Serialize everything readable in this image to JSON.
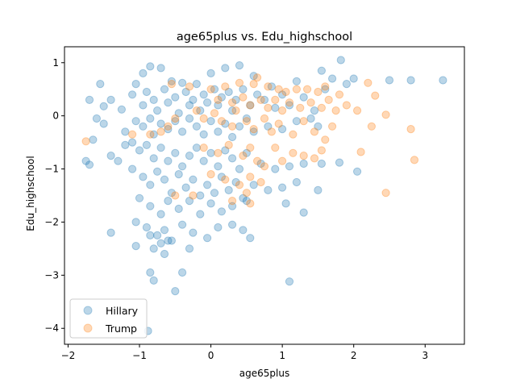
{
  "chart_data": {
    "type": "scatter",
    "title": "age65plus vs. Edu_highschool",
    "xlabel": "age65plus",
    "ylabel": "Edu_highschool",
    "xlim": [
      -2.05,
      3.55
    ],
    "ylim": [
      -4.3,
      1.3
    ],
    "xticks": [
      -2,
      -1,
      0,
      1,
      2,
      3
    ],
    "yticks": [
      1,
      0,
      -1,
      -2,
      -3,
      -4
    ],
    "grid": false,
    "legend_position": "bottom-left",
    "series": [
      {
        "name": "Hillary",
        "color": "#1f77b4",
        "points": [
          [
            -0.95,
            0.8
          ],
          [
            -0.85,
            0.93
          ],
          [
            -0.7,
            0.9
          ],
          [
            -0.55,
            0.65
          ],
          [
            -0.4,
            0.62
          ],
          [
            -0.2,
            0.6
          ],
          [
            0.0,
            0.8
          ],
          [
            0.2,
            0.9
          ],
          [
            0.4,
            0.95
          ],
          [
            0.6,
            0.75
          ],
          [
            0.85,
            0.55
          ],
          [
            1.2,
            0.65
          ],
          [
            1.55,
            0.85
          ],
          [
            1.7,
            0.7
          ],
          [
            1.82,
            1.05
          ],
          [
            1.9,
            0.6
          ],
          [
            2.0,
            0.7
          ],
          [
            2.5,
            0.67
          ],
          [
            2.8,
            0.67
          ],
          [
            3.25,
            0.67
          ],
          [
            -1.55,
            0.6
          ],
          [
            -1.7,
            0.3
          ],
          [
            -1.5,
            0.18
          ],
          [
            -1.4,
            0.3
          ],
          [
            -1.25,
            0.12
          ],
          [
            -1.1,
            0.4
          ],
          [
            -1.05,
            0.6
          ],
          [
            -0.95,
            0.2
          ],
          [
            -0.9,
            0.45
          ],
          [
            -0.8,
            0.3
          ],
          [
            -0.75,
            0.1
          ],
          [
            -0.65,
            0.5
          ],
          [
            -0.6,
            0.25
          ],
          [
            -0.5,
            0.35
          ],
          [
            -0.45,
            0.05
          ],
          [
            -0.35,
            0.45
          ],
          [
            -0.3,
            0.2
          ],
          [
            -0.25,
            0.3
          ],
          [
            -0.15,
            0.1
          ],
          [
            -0.1,
            0.4
          ],
          [
            -0.05,
            0.25
          ],
          [
            0.05,
            0.5
          ],
          [
            0.1,
            0.2
          ],
          [
            0.15,
            0.35
          ],
          [
            0.25,
            0.45
          ],
          [
            0.3,
            0.1
          ],
          [
            0.35,
            0.3
          ],
          [
            0.45,
            0.5
          ],
          [
            0.55,
            0.2
          ],
          [
            0.65,
            0.4
          ],
          [
            0.75,
            0.3
          ],
          [
            0.9,
            0.15
          ],
          [
            1.0,
            0.4
          ],
          [
            1.1,
            0.2
          ],
          [
            1.3,
            0.35
          ],
          [
            1.45,
            0.1
          ],
          [
            1.6,
            0.5
          ],
          [
            -1.6,
            -0.05
          ],
          [
            -1.5,
            -0.15
          ],
          [
            -1.2,
            -0.3
          ],
          [
            -1.05,
            -0.1
          ],
          [
            -0.95,
            -0.2
          ],
          [
            -0.85,
            -0.05
          ],
          [
            -0.8,
            -0.35
          ],
          [
            -0.7,
            -0.15
          ],
          [
            -0.6,
            -0.25
          ],
          [
            -0.5,
            -0.1
          ],
          [
            -0.4,
            -0.3
          ],
          [
            -0.3,
            -0.05
          ],
          [
            -0.2,
            -0.2
          ],
          [
            -0.1,
            -0.35
          ],
          [
            0.0,
            -0.1
          ],
          [
            0.1,
            -0.3
          ],
          [
            0.2,
            -0.15
          ],
          [
            0.3,
            -0.4
          ],
          [
            0.4,
            -0.2
          ],
          [
            0.5,
            -0.05
          ],
          [
            0.6,
            -0.3
          ],
          [
            0.8,
            -0.2
          ],
          [
            1.0,
            -0.25
          ],
          [
            1.2,
            -0.1
          ],
          [
            1.4,
            -0.05
          ],
          [
            1.5,
            -0.2
          ],
          [
            -1.65,
            -0.45
          ],
          [
            -1.75,
            -0.85
          ],
          [
            -1.7,
            -0.92
          ],
          [
            -1.4,
            -0.75
          ],
          [
            -1.2,
            -0.55
          ],
          [
            -1.1,
            -0.5
          ],
          [
            -1.0,
            -0.65
          ],
          [
            -0.9,
            -0.55
          ],
          [
            -0.8,
            -0.8
          ],
          [
            -0.7,
            -0.6
          ],
          [
            -0.6,
            -0.85
          ],
          [
            -0.5,
            -0.7
          ],
          [
            -0.4,
            -0.95
          ],
          [
            -0.3,
            -0.75
          ],
          [
            -0.2,
            -0.6
          ],
          [
            -0.1,
            -0.85
          ],
          [
            0.0,
            -0.7
          ],
          [
            0.1,
            -0.95
          ],
          [
            0.2,
            -0.65
          ],
          [
            0.3,
            -0.8
          ],
          [
            0.4,
            -1.0
          ],
          [
            0.5,
            -0.7
          ],
          [
            0.7,
            -0.9
          ],
          [
            0.9,
            -1.0
          ],
          [
            1.1,
            -0.95
          ],
          [
            1.3,
            -0.9
          ],
          [
            1.55,
            -0.9
          ],
          [
            1.8,
            -0.88
          ],
          [
            2.05,
            -1.05
          ],
          [
            -1.3,
            -0.85
          ],
          [
            -1.1,
            -1.0
          ],
          [
            -0.95,
            -1.15
          ],
          [
            -0.85,
            -1.3
          ],
          [
            -0.75,
            -1.05
          ],
          [
            -0.65,
            -1.2
          ],
          [
            -0.55,
            -1.45
          ],
          [
            -0.45,
            -1.1
          ],
          [
            -0.35,
            -1.35
          ],
          [
            -0.25,
            -1.2
          ],
          [
            -0.15,
            -1.5
          ],
          [
            -0.05,
            -1.3
          ],
          [
            0.05,
            -1.45
          ],
          [
            0.15,
            -1.15
          ],
          [
            0.25,
            -1.4
          ],
          [
            0.35,
            -1.25
          ],
          [
            0.45,
            -1.55
          ],
          [
            0.6,
            -1.3
          ],
          [
            0.8,
            -1.4
          ],
          [
            1.0,
            -1.35
          ],
          [
            1.2,
            -1.25
          ],
          [
            1.5,
            -1.4
          ],
          [
            -1.0,
            -1.55
          ],
          [
            -0.85,
            -1.7
          ],
          [
            -0.7,
            -1.85
          ],
          [
            -0.6,
            -1.6
          ],
          [
            -0.45,
            -1.75
          ],
          [
            -0.3,
            -1.6
          ],
          [
            -0.15,
            -1.85
          ],
          [
            0.0,
            -1.65
          ],
          [
            0.15,
            -1.8
          ],
          [
            0.3,
            -1.7
          ],
          [
            0.5,
            -1.6
          ],
          [
            1.05,
            -1.65
          ],
          [
            1.3,
            -1.82
          ],
          [
            -1.05,
            -2.0
          ],
          [
            -0.9,
            -2.1
          ],
          [
            -0.75,
            -2.25
          ],
          [
            -0.65,
            -2.15
          ],
          [
            -0.55,
            -2.35
          ],
          [
            -0.4,
            -2.05
          ],
          [
            -0.25,
            -2.2
          ],
          [
            -0.05,
            -2.3
          ],
          [
            0.1,
            -2.1
          ],
          [
            0.3,
            -2.05
          ],
          [
            0.45,
            -2.15
          ],
          [
            0.55,
            -2.3
          ],
          [
            -1.4,
            -2.2
          ],
          [
            -1.05,
            -2.45
          ],
          [
            -0.85,
            -2.25
          ],
          [
            -0.8,
            -2.5
          ],
          [
            -0.7,
            -2.4
          ],
          [
            -0.65,
            -2.6
          ],
          [
            -0.6,
            -2.35
          ],
          [
            -0.3,
            -2.5
          ],
          [
            -0.85,
            -2.95
          ],
          [
            -0.8,
            -3.1
          ],
          [
            -0.4,
            -2.95
          ],
          [
            -0.5,
            -3.3
          ],
          [
            1.1,
            -3.12
          ],
          [
            -0.88,
            -4.05
          ]
        ]
      },
      {
        "name": "Trump",
        "color": "#ff7f0e",
        "points": [
          [
            -0.55,
            0.6
          ],
          [
            -0.3,
            0.55
          ],
          [
            0.0,
            0.5
          ],
          [
            0.2,
            0.55
          ],
          [
            0.4,
            0.62
          ],
          [
            0.6,
            0.6
          ],
          [
            0.65,
            0.72
          ],
          [
            0.8,
            0.55
          ],
          [
            0.95,
            0.5
          ],
          [
            1.05,
            0.45
          ],
          [
            1.2,
            0.5
          ],
          [
            1.35,
            0.5
          ],
          [
            1.5,
            0.45
          ],
          [
            1.6,
            0.55
          ],
          [
            1.8,
            0.4
          ],
          [
            2.2,
            0.62
          ],
          [
            2.3,
            0.38
          ],
          [
            2.45,
            0.02
          ],
          [
            0.1,
            0.3
          ],
          [
            0.3,
            0.25
          ],
          [
            0.45,
            0.35
          ],
          [
            0.55,
            0.2
          ],
          [
            0.7,
            0.3
          ],
          [
            0.8,
            0.15
          ],
          [
            0.9,
            0.3
          ],
          [
            1.0,
            0.1
          ],
          [
            1.1,
            0.25
          ],
          [
            1.25,
            0.15
          ],
          [
            1.4,
            0.25
          ],
          [
            1.55,
            0.15
          ],
          [
            1.65,
            0.3
          ],
          [
            1.75,
            0.1
          ],
          [
            1.9,
            0.2
          ],
          [
            2.05,
            0.1
          ],
          [
            2.25,
            -0.2
          ],
          [
            2.8,
            -0.25
          ],
          [
            -0.1,
            -0.05
          ],
          [
            0.15,
            -0.1
          ],
          [
            0.3,
            -0.2
          ],
          [
            0.5,
            -0.1
          ],
          [
            0.6,
            -0.25
          ],
          [
            0.75,
            -0.05
          ],
          [
            0.85,
            -0.3
          ],
          [
            0.95,
            -0.15
          ],
          [
            1.15,
            -0.35
          ],
          [
            1.3,
            -0.1
          ],
          [
            1.45,
            -0.3
          ],
          [
            1.6,
            -0.45
          ],
          [
            1.7,
            -0.2
          ],
          [
            -0.5,
            -0.05
          ],
          [
            -0.6,
            -0.2
          ],
          [
            -0.7,
            -0.3
          ],
          [
            -0.85,
            -0.35
          ],
          [
            -1.1,
            -0.35
          ],
          [
            -1.75,
            -0.48
          ],
          [
            -0.1,
            -0.6
          ],
          [
            0.1,
            -0.7
          ],
          [
            0.25,
            -0.55
          ],
          [
            0.45,
            -0.75
          ],
          [
            0.55,
            -0.6
          ],
          [
            0.65,
            -0.85
          ],
          [
            0.75,
            -0.95
          ],
          [
            0.9,
            -0.6
          ],
          [
            1.0,
            -0.85
          ],
          [
            1.15,
            -0.7
          ],
          [
            1.3,
            -0.75
          ],
          [
            1.45,
            -0.8
          ],
          [
            1.55,
            -0.65
          ],
          [
            2.1,
            -0.68
          ],
          [
            2.85,
            -0.83
          ],
          [
            0.0,
            -1.1
          ],
          [
            0.2,
            -1.2
          ],
          [
            0.4,
            -1.3
          ],
          [
            0.55,
            -1.15
          ],
          [
            0.7,
            -1.25
          ],
          [
            0.5,
            -1.45
          ],
          [
            0.55,
            -1.65
          ],
          [
            0.3,
            -1.6
          ],
          [
            -0.25,
            -1.5
          ],
          [
            -0.5,
            -1.5
          ],
          [
            2.45,
            -1.45
          ],
          [
            -0.2,
            0.1
          ],
          [
            0.05,
            0.05
          ],
          [
            0.35,
            0.1
          ]
        ]
      }
    ]
  }
}
